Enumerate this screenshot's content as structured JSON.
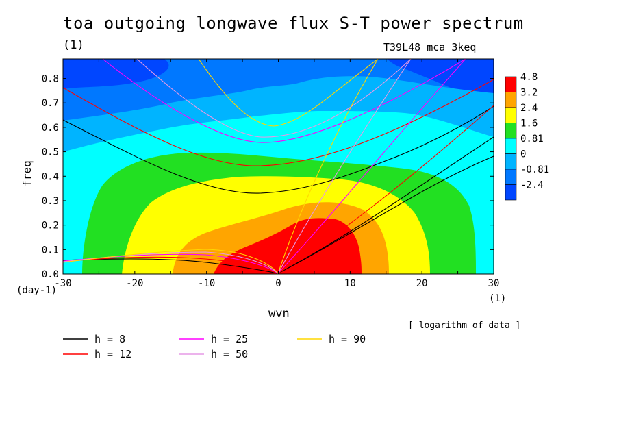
{
  "header": {
    "title": "toa outgoing longwave flux S-T power spectrum",
    "unit": "(1)",
    "run": "T39L48_mca_3keq"
  },
  "axes": {
    "ylabel": "freq",
    "y_units": "(day-1)",
    "xlabel": "wvn",
    "x_units": "(1)"
  },
  "note": "[ logarithm of data ]",
  "chart_data": {
    "type": "heatmap",
    "title": "toa outgoing longwave flux S-T power spectrum",
    "xlabel": "wvn",
    "ylabel": "freq",
    "xlim": [
      -30,
      30
    ],
    "ylim": [
      0,
      0.88
    ],
    "x_ticks": [
      -30,
      -20,
      -10,
      0,
      10,
      20,
      30
    ],
    "x_tick_labels": [
      "-30",
      "-20",
      "-10",
      "0",
      "10",
      "20",
      "30"
    ],
    "y_ticks": [
      0.0,
      0.1,
      0.2,
      0.3,
      0.4,
      0.5,
      0.6,
      0.7,
      0.8
    ],
    "y_tick_labels": [
      "0.0",
      "0.1",
      "0.2",
      "0.3",
      "0.4",
      "0.5",
      "0.6",
      "0.7",
      "0.8"
    ],
    "colorbar": {
      "labels": [
        "4.8",
        "3.2",
        "2.4",
        "1.6",
        "0.81",
        "0",
        "-0.81",
        "-2.4"
      ],
      "colors": [
        "#ff0000",
        "#ffa500",
        "#ffff00",
        "#22e022",
        "#00ffff",
        "#00b4ff",
        "#0078ff",
        "#0046ff"
      ]
    },
    "contour_levels": [
      -2.4,
      -0.81,
      0,
      0.81,
      1.6,
      2.4,
      3.2,
      4.8
    ],
    "dispersion_curves": [
      {
        "name": "h =  8",
        "equivalent_depth": 8,
        "color": "#000000"
      },
      {
        "name": "h = 12",
        "equivalent_depth": 12,
        "color": "#ff0000"
      },
      {
        "name": "h = 25",
        "equivalent_depth": 25,
        "color": "#ff00ff"
      },
      {
        "name": "h = 50",
        "equivalent_depth": 50,
        "color": "#e59ae5"
      },
      {
        "name": "h = 90",
        "equivalent_depth": 90,
        "color": "#ffd700"
      }
    ],
    "legend": "bottom"
  }
}
